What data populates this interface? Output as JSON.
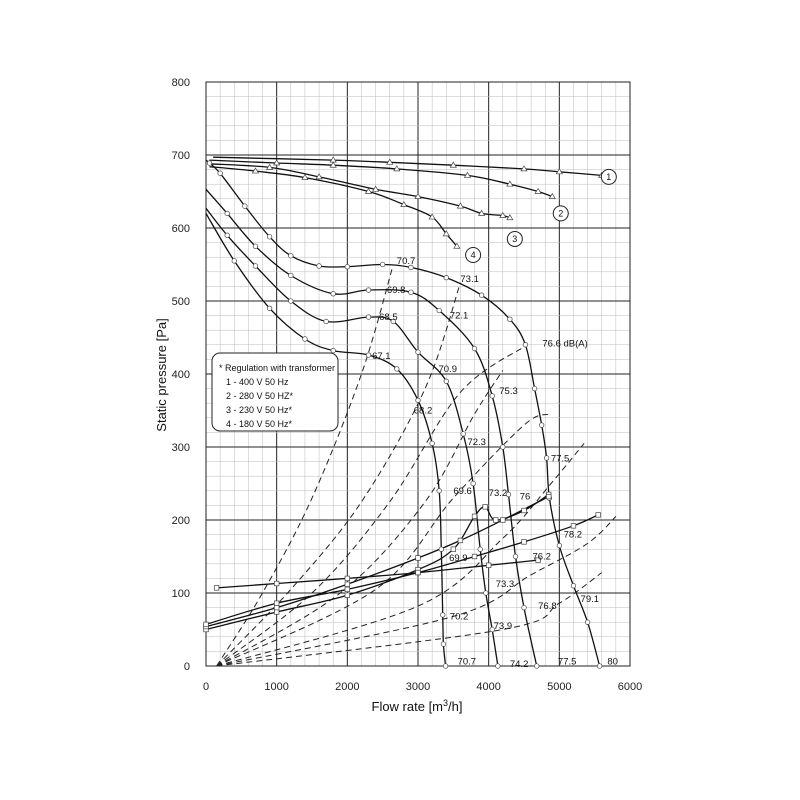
{
  "chart_data": {
    "type": "line",
    "xlabel": "Flow rate [m",
    "xlabel_sup": "3",
    "xlabel_end": "/h]",
    "ylabel": "Static pressure [Pa]",
    "xlim": [
      0,
      6000
    ],
    "ylim": [
      0,
      800
    ],
    "x_ticks": [
      "0",
      "1000",
      "2000",
      "3000",
      "4000",
      "5000",
      "6000"
    ],
    "y_ticks": [
      "0",
      "100",
      "200",
      "300",
      "400",
      "500",
      "600",
      "700",
      "800"
    ],
    "grid": true,
    "legend": {
      "title": "* Regulation with transformer",
      "items": [
        "1 - 400 V 50 Hz",
        "2 - 280 V 50 HZ*",
        "3 - 230 V 50 Hz*",
        "4 - 180 V 50 Hz*"
      ]
    },
    "curve_numbers": [
      {
        "label": "1",
        "x": 5700,
        "y": 670
      },
      {
        "label": "2",
        "x": 5020,
        "y": 620
      },
      {
        "label": "3",
        "x": 4370,
        "y": 585
      },
      {
        "label": "4",
        "x": 3780,
        "y": 563
      }
    ],
    "series": [
      {
        "points": [
          [
            100,
            697
          ],
          [
            1800,
            693
          ],
          [
            2600,
            690
          ],
          [
            3500,
            686
          ],
          [
            4500,
            681
          ],
          [
            5000,
            677
          ],
          [
            5600,
            672
          ]
        ],
        "marker": "triangle"
      },
      {
        "points": [
          [
            50,
            693
          ],
          [
            1000,
            689
          ],
          [
            1800,
            686
          ],
          [
            2700,
            681
          ],
          [
            3700,
            672
          ],
          [
            4300,
            660
          ],
          [
            4700,
            650
          ],
          [
            4900,
            643
          ]
        ],
        "marker": "triangle"
      },
      {
        "points": [
          [
            50,
            688
          ],
          [
            900,
            683
          ],
          [
            1600,
            670
          ],
          [
            2400,
            653
          ],
          [
            3000,
            643
          ],
          [
            3600,
            630
          ],
          [
            3900,
            620
          ],
          [
            4200,
            617
          ],
          [
            4300,
            614
          ]
        ],
        "marker": "triangle"
      },
      {
        "points": [
          [
            50,
            684
          ],
          [
            700,
            678
          ],
          [
            1400,
            669
          ],
          [
            2300,
            650
          ],
          [
            2800,
            632
          ],
          [
            3200,
            615
          ],
          [
            3400,
            592
          ],
          [
            3550,
            575
          ]
        ],
        "marker": "triangle"
      },
      {
        "points": [
          [
            0,
            693
          ],
          [
            50,
            689
          ],
          [
            200,
            675
          ],
          [
            550,
            630
          ],
          [
            900,
            588
          ],
          [
            1200,
            562
          ],
          [
            1600,
            548
          ],
          [
            2000,
            547
          ],
          [
            2500,
            550
          ],
          [
            2900,
            546
          ],
          [
            3400,
            532
          ],
          [
            3900,
            508
          ],
          [
            4300,
            475
          ],
          [
            4520,
            440
          ],
          [
            4650,
            380
          ],
          [
            4750,
            330
          ],
          [
            4820,
            285
          ],
          [
            4860,
            230
          ],
          [
            5000,
            165
          ],
          [
            5200,
            110
          ],
          [
            5400,
            60
          ],
          [
            5570,
            0
          ]
        ],
        "marker": "circle"
      },
      {
        "points": [
          [
            0,
            653
          ],
          [
            300,
            620
          ],
          [
            700,
            575
          ],
          [
            1200,
            535
          ],
          [
            1800,
            510
          ],
          [
            2300,
            515
          ],
          [
            2900,
            512
          ],
          [
            3300,
            487
          ],
          [
            3800,
            435
          ],
          [
            4050,
            370
          ],
          [
            4200,
            300
          ],
          [
            4280,
            235
          ],
          [
            4380,
            150
          ],
          [
            4500,
            80
          ],
          [
            4680,
            0
          ]
        ],
        "marker": "circle"
      },
      {
        "points": [
          [
            0,
            627
          ],
          [
            300,
            590
          ],
          [
            700,
            548
          ],
          [
            1200,
            500
          ],
          [
            1700,
            472
          ],
          [
            2300,
            478
          ],
          [
            2650,
            472
          ],
          [
            3000,
            430
          ],
          [
            3400,
            390
          ],
          [
            3640,
            318
          ],
          [
            3780,
            250
          ],
          [
            3880,
            160
          ],
          [
            3960,
            100
          ],
          [
            4050,
            50
          ],
          [
            4130,
            0
          ]
        ],
        "marker": "circle"
      },
      {
        "points": [
          [
            0,
            620
          ],
          [
            400,
            555
          ],
          [
            900,
            490
          ],
          [
            1400,
            448
          ],
          [
            1800,
            432
          ],
          [
            2300,
            426
          ],
          [
            2700,
            407
          ],
          [
            3000,
            364
          ],
          [
            3200,
            305
          ],
          [
            3300,
            240
          ],
          [
            3330,
            160
          ],
          [
            3350,
            70
          ],
          [
            3360,
            30
          ],
          [
            3390,
            0
          ]
        ],
        "marker": "circle"
      },
      {
        "points": [
          [
            0,
            50
          ],
          [
            1000,
            74
          ],
          [
            2000,
            97
          ],
          [
            3000,
            132
          ],
          [
            3500,
            160
          ],
          [
            3800,
            205
          ],
          [
            3950,
            218
          ],
          [
            4100,
            200
          ],
          [
            4500,
            213
          ],
          [
            4850,
            235
          ]
        ],
        "marker": "square"
      },
      {
        "points": [
          [
            0,
            54
          ],
          [
            1000,
            80
          ],
          [
            2000,
            112
          ],
          [
            3000,
            148
          ],
          [
            3600,
            172
          ],
          [
            4200,
            200
          ],
          [
            4850,
            232
          ]
        ],
        "marker": "square"
      },
      {
        "points": [
          [
            0,
            57
          ],
          [
            1000,
            86
          ],
          [
            2000,
            105
          ],
          [
            3000,
            128
          ],
          [
            3800,
            150
          ],
          [
            4500,
            170
          ],
          [
            5200,
            192
          ],
          [
            5550,
            207
          ]
        ],
        "marker": "square"
      },
      {
        "points": [
          [
            150,
            107
          ],
          [
            1000,
            113
          ],
          [
            2000,
            120
          ],
          [
            3000,
            128
          ],
          [
            4000,
            138
          ],
          [
            4700,
            145
          ]
        ],
        "marker": "square"
      }
    ],
    "dashed_lines": [
      {
        "points": [
          [
            150,
            0
          ],
          [
            800,
            100
          ],
          [
            1500,
            230
          ],
          [
            2200,
            400
          ],
          [
            2650,
            550
          ]
        ]
      },
      {
        "points": [
          [
            150,
            0
          ],
          [
            1200,
            105
          ],
          [
            2200,
            225
          ],
          [
            3100,
            380
          ],
          [
            3600,
            525
          ]
        ]
      },
      {
        "points": [
          [
            150,
            0
          ],
          [
            1500,
            100
          ],
          [
            2600,
            225
          ],
          [
            3600,
            375
          ],
          [
            4550,
            440
          ]
        ]
      },
      {
        "points": [
          [
            150,
            0
          ],
          [
            1900,
            100
          ],
          [
            3100,
            225
          ],
          [
            3800,
            345
          ],
          [
            4200,
            405
          ]
        ]
      },
      {
        "points": [
          [
            150,
            0
          ],
          [
            2400,
            105
          ],
          [
            3500,
            230
          ],
          [
            4500,
            330
          ],
          [
            4850,
            345
          ]
        ]
      },
      {
        "points": [
          [
            150,
            0
          ],
          [
            3000,
            82
          ],
          [
            4200,
            175
          ],
          [
            4900,
            252
          ],
          [
            5350,
            305
          ]
        ]
      },
      {
        "points": [
          [
            150,
            0
          ],
          [
            3500,
            68
          ],
          [
            4600,
            125
          ],
          [
            5400,
            168
          ],
          [
            5800,
            205
          ]
        ]
      },
      {
        "points": [
          [
            150,
            0
          ],
          [
            4200,
            50
          ],
          [
            5000,
            86
          ],
          [
            5600,
            128
          ]
        ]
      }
    ],
    "annotations": [
      {
        "text": "70.7",
        "x": 2700,
        "y": 555
      },
      {
        "text": "73.1",
        "x": 3600,
        "y": 530
      },
      {
        "text": "69.8",
        "x": 2560,
        "y": 515
      },
      {
        "text": "72.1",
        "x": 3450,
        "y": 480
      },
      {
        "text": "68.5",
        "x": 2450,
        "y": 478
      },
      {
        "text": "76.6 dB(A)",
        "x": 4760,
        "y": 442
      },
      {
        "text": "67.1",
        "x": 2350,
        "y": 425
      },
      {
        "text": "70.9",
        "x": 3290,
        "y": 407
      },
      {
        "text": "75.3",
        "x": 4150,
        "y": 377
      },
      {
        "text": "68.2",
        "x": 2940,
        "y": 350
      },
      {
        "text": "72.3",
        "x": 3700,
        "y": 307
      },
      {
        "text": "77.5",
        "x": 4880,
        "y": 284
      },
      {
        "text": "69.6",
        "x": 3500,
        "y": 240
      },
      {
        "text": "73.2",
        "x": 4000,
        "y": 237
      },
      {
        "text": "76",
        "x": 4440,
        "y": 232
      },
      {
        "text": "78.2",
        "x": 5060,
        "y": 180
      },
      {
        "text": "76.2",
        "x": 4620,
        "y": 150
      },
      {
        "text": "69.9",
        "x": 3440,
        "y": 148
      },
      {
        "text": "73.3",
        "x": 4100,
        "y": 112
      },
      {
        "text": "79.1",
        "x": 5300,
        "y": 92
      },
      {
        "text": "76.8",
        "x": 4700,
        "y": 82
      },
      {
        "text": "73.9",
        "x": 4070,
        "y": 55
      },
      {
        "text": "70.2",
        "x": 3450,
        "y": 68
      },
      {
        "text": "70.7",
        "x": 3560,
        "y": 6
      },
      {
        "text": "74.2",
        "x": 4300,
        "y": 3
      },
      {
        "text": "77.5",
        "x": 4980,
        "y": 6
      },
      {
        "text": "80",
        "x": 5680,
        "y": 6
      }
    ]
  }
}
